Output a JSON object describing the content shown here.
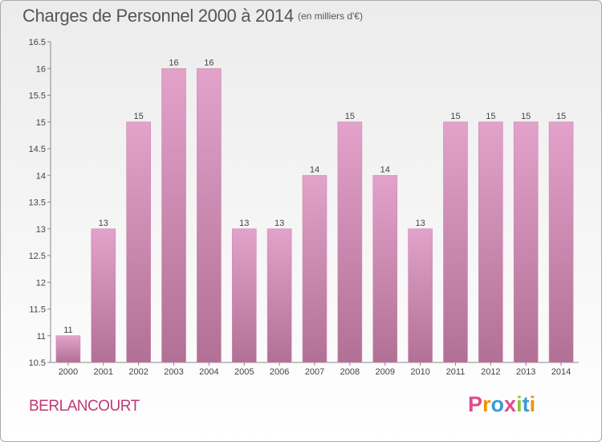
{
  "chart_data": {
    "type": "bar",
    "title": "Charges de Personnel 2000 à 2014",
    "subtitle": "(en milliers d'€)",
    "categories": [
      "2000",
      "2001",
      "2002",
      "2003",
      "2004",
      "2005",
      "2006",
      "2007",
      "2008",
      "2009",
      "2010",
      "2011",
      "2012",
      "2013",
      "2014"
    ],
    "values": [
      11,
      13,
      15,
      16,
      16,
      13,
      13,
      14,
      15,
      14,
      13,
      15,
      15,
      15,
      15
    ],
    "value_labels": [
      "11",
      "13",
      "15",
      "16",
      "16",
      "13",
      "13",
      "14",
      "15",
      "14",
      "13",
      "15",
      "15",
      "15",
      "15"
    ],
    "ylim": [
      10.5,
      16.5
    ],
    "y_ticks": [
      10.5,
      11,
      11.5,
      12,
      12.5,
      13,
      13.5,
      14,
      14.5,
      15,
      15.5,
      16,
      16.5
    ],
    "y_tick_labels": [
      "10.5",
      "11",
      "11.5",
      "12",
      "12.5",
      "13",
      "13.5",
      "14",
      "14.5",
      "15",
      "15.5",
      "16",
      "16.5"
    ],
    "grid": false,
    "bar_color_top": "#e2a2c9",
    "bar_color_bottom": "#b27096"
  },
  "footer": {
    "place": "BERLANCOURT",
    "brand": [
      "P",
      "r",
      "o",
      "x",
      "i",
      "t",
      "i"
    ],
    "brand_colors": [
      "#e04a8f",
      "#f39200",
      "#3b9ad9",
      "#e04a8f",
      "#8cc63f",
      "#3b9ad9",
      "#f39200"
    ]
  }
}
